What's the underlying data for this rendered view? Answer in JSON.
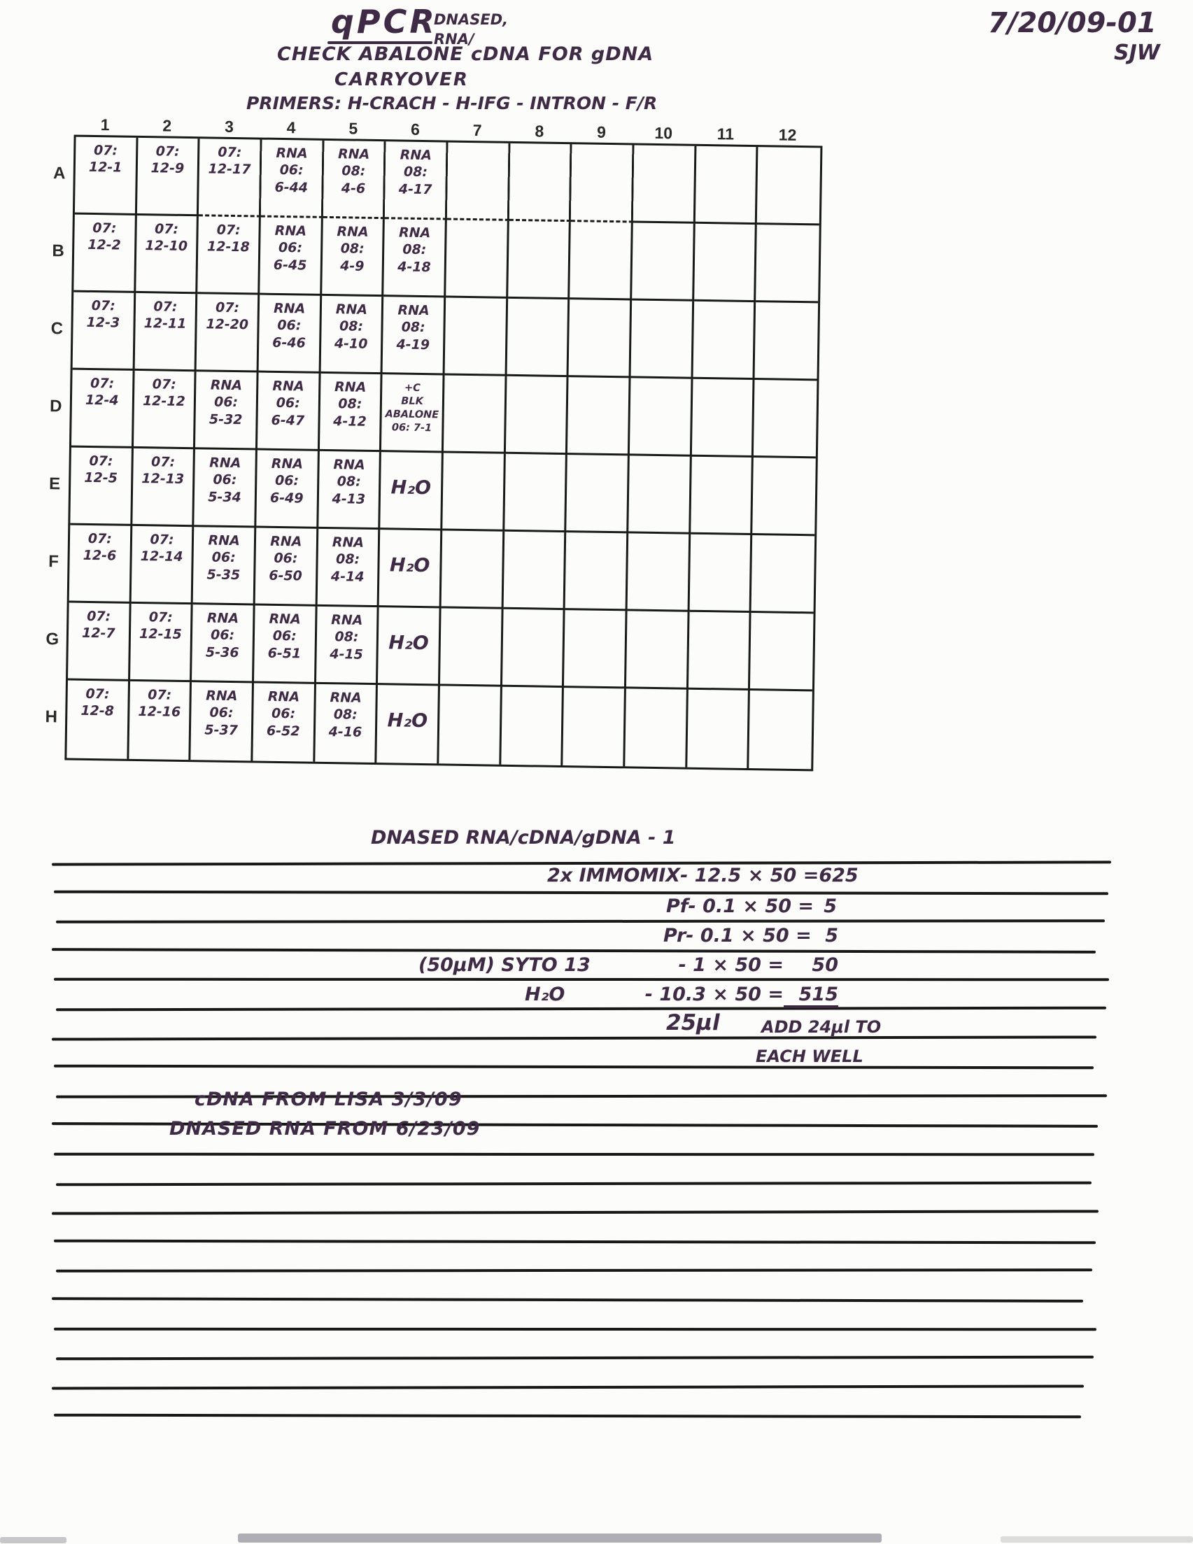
{
  "page": {
    "header": {
      "title": "qPCR",
      "title_annotation": "DNASED,\nRNA/",
      "subtitle_line1": "CHECK ABALONE cDNA FOR gDNA",
      "subtitle_line2": "CARRYOVER",
      "primers": "PRIMERS: H-CRACH - H-IFG - INTRON - F/R",
      "date_code": "7/20/09-01",
      "initials": "SJW"
    },
    "plate": {
      "column_headers": [
        "1",
        "2",
        "3",
        "4",
        "5",
        "6",
        "7",
        "8",
        "9",
        "10",
        "11",
        "12"
      ],
      "row_headers": [
        "A",
        "B",
        "C",
        "D",
        "E",
        "F",
        "G",
        "H"
      ],
      "wells": [
        [
          "07:\n12-1",
          "07:\n12-9",
          "07:\n12-17",
          "RNA\n06:\n6-44",
          "RNA\n08:\n4-6",
          "RNA\n08:\n4-17",
          "",
          "",
          "",
          "",
          "",
          ""
        ],
        [
          "07:\n12-2",
          "07:\n12-10",
          "07:\n12-18",
          "RNA\n06:\n6-45",
          "RNA\n08:\n4-9",
          "RNA\n08:\n4-18",
          "",
          "",
          "",
          "",
          "",
          ""
        ],
        [
          "07:\n12-3",
          "07:\n12-11",
          "07:\n12-20",
          "RNA\n06:\n6-46",
          "RNA\n08:\n4-10",
          "RNA\n08:\n4-19",
          "",
          "",
          "",
          "",
          "",
          ""
        ],
        [
          "07:\n12-4",
          "07:\n12-12",
          "RNA\n06:\n5-32",
          "RNA\n06:\n6-47",
          "RNA\n08:\n4-12",
          "+C\nBLK ABALONE\n06: 7-1",
          "",
          "",
          "",
          "",
          "",
          ""
        ],
        [
          "07:\n12-5",
          "07:\n12-13",
          "RNA\n06:\n5-34",
          "RNA\n06:\n6-49",
          "RNA\n08:\n4-13",
          "H₂O",
          "",
          "",
          "",
          "",
          "",
          ""
        ],
        [
          "07:\n12-6",
          "07:\n12-14",
          "RNA\n06:\n5-35",
          "RNA\n06:\n6-50",
          "RNA\n08:\n4-14",
          "H₂O",
          "",
          "",
          "",
          "",
          "",
          ""
        ],
        [
          "07:\n12-7",
          "07:\n12-15",
          "RNA\n06:\n5-36",
          "RNA\n06:\n6-51",
          "RNA\n08:\n4-15",
          "H₂O",
          "",
          "",
          "",
          "",
          "",
          ""
        ],
        [
          "07:\n12-8",
          "07:\n12-16",
          "RNA\n06:\n5-37",
          "RNA\n06:\n6-52",
          "RNA\n08:\n4-16",
          "H₂O",
          "",
          "",
          "",
          "",
          "",
          ""
        ]
      ]
    },
    "mastermix": {
      "heading": "DNASED RNA/cDNA/gDNA - 1",
      "rows": [
        {
          "label": "2x IMMOMIX",
          "calc": "- 12.5 × 50 =",
          "result": "625",
          "underline": false
        },
        {
          "label": "Pf",
          "calc": "- 0.1 × 50 =",
          "result": "5",
          "underline": false
        },
        {
          "label": "Pr",
          "calc": "- 0.1 × 50 =",
          "result": "5",
          "underline": false
        },
        {
          "label": "(50μM) SYTO 13",
          "calc": "- 1 × 50 =",
          "result": "50",
          "underline": false
        },
        {
          "label": "H₂O",
          "calc": "- 10.3 × 50 =",
          "result": "515",
          "underline": true
        }
      ],
      "total": "25μl",
      "note_line1": "ADD 24μl TO",
      "note_line2": "EACH WELL"
    },
    "notes": [
      "cDNA FROM LISA 3/3/09",
      "DNASED RNA FROM 6/23/09"
    ]
  }
}
